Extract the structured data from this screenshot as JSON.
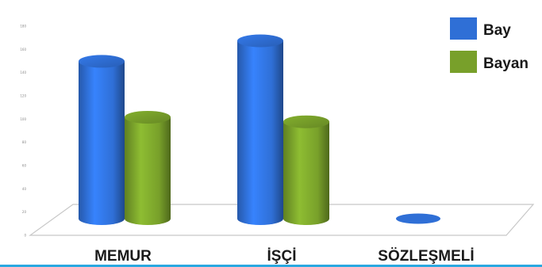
{
  "chart_data": {
    "type": "bar",
    "style": "3d-cylinder",
    "categories": [
      "MEMUR",
      "İŞÇİ",
      "SÖZLEŞMELİ"
    ],
    "series": [
      {
        "name": "Bay",
        "color": "#2f6fd6",
        "values": [
          138,
          156,
          0
        ]
      },
      {
        "name": "Bayan",
        "color": "#78a02a",
        "values": [
          89,
          85,
          0
        ]
      }
    ],
    "ylim": [
      0,
      180
    ],
    "ytick_values": [
      0,
      20,
      40,
      60,
      80,
      100,
      120,
      140,
      160,
      180
    ],
    "grid": false,
    "legend_position": "top-right"
  },
  "colors": {
    "bottom_rule": "#2aa8e0",
    "floor": "#c8c8c8"
  }
}
